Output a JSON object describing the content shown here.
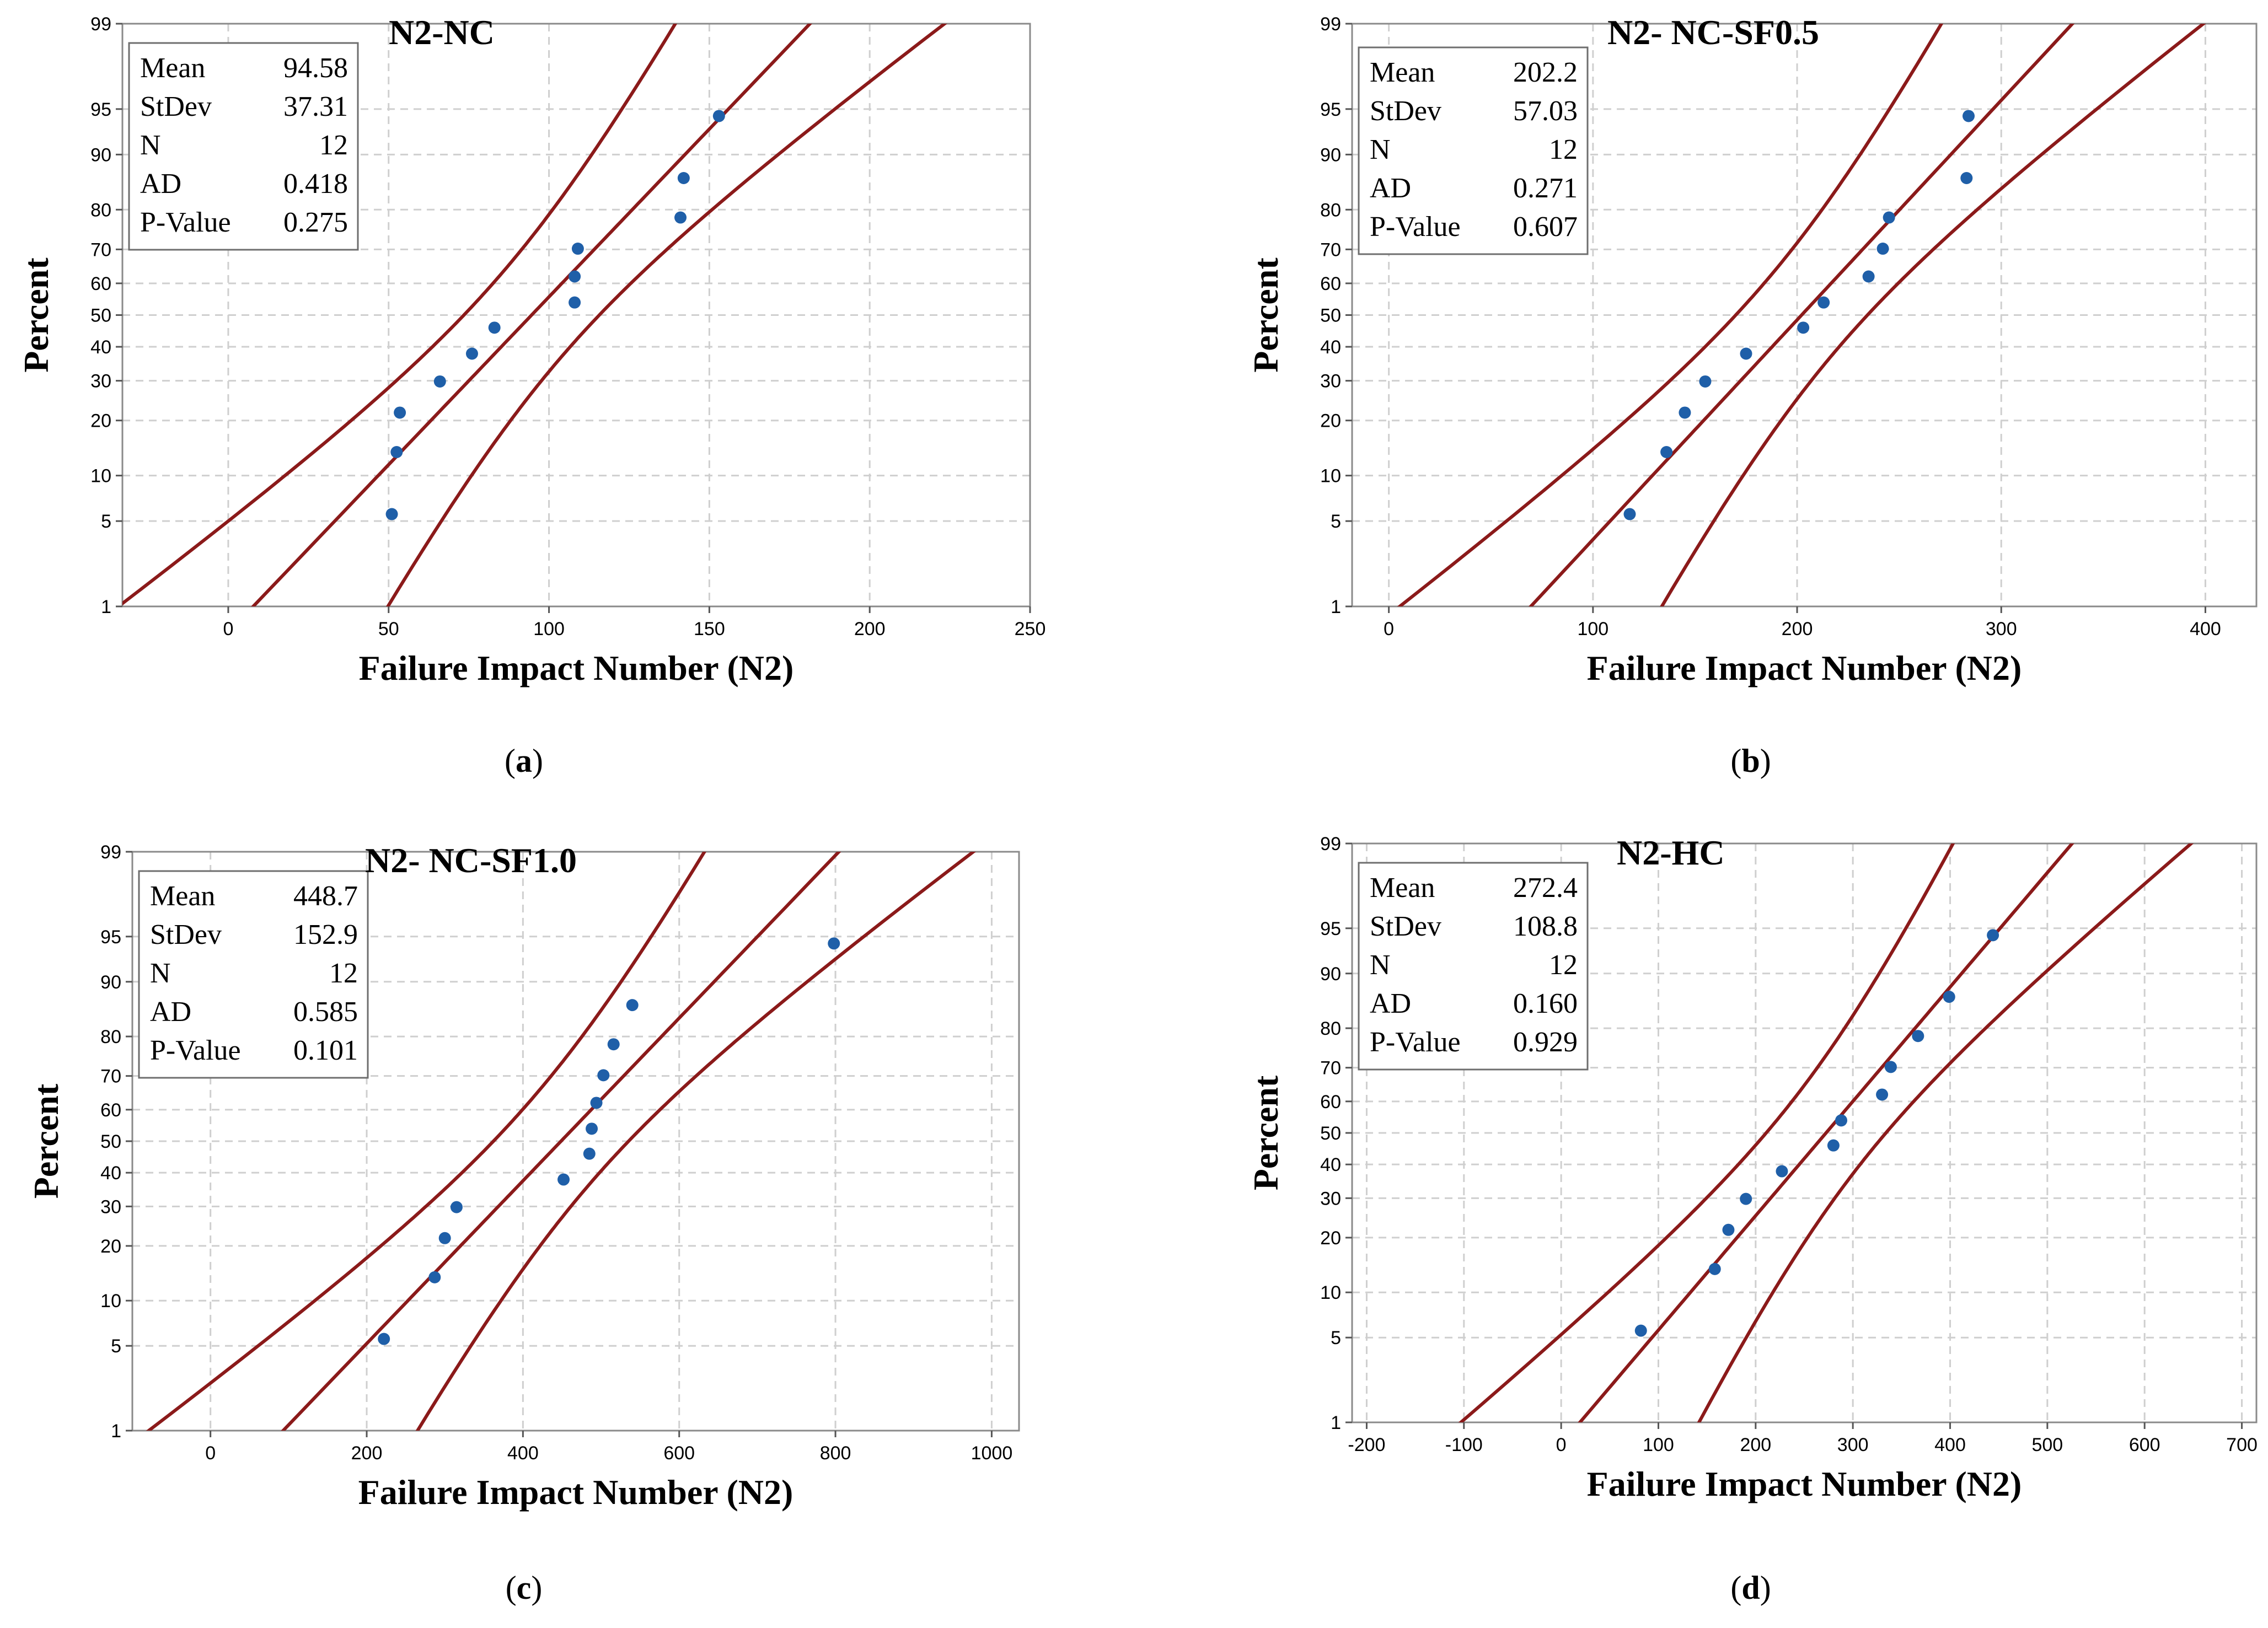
{
  "colors": {
    "line": "#8b1a1a",
    "point": "#1f5fa8",
    "grid": "#cfcfcf",
    "frame": "#8a8a8a"
  },
  "stat_labels": [
    "Mean",
    "StDev",
    "N",
    "AD",
    "P-Value"
  ],
  "chart_data": [
    {
      "type": "scatter",
      "panel": "a",
      "caption_letter": "a",
      "title": "N2-NC",
      "xlabel": "Failure Impact Number (N2)",
      "ylabel": "Percent",
      "xlim": [
        -33,
        250
      ],
      "xticks": [
        0,
        50,
        100,
        150,
        200,
        250
      ],
      "yticks": [
        1,
        5,
        10,
        20,
        30,
        40,
        50,
        60,
        70,
        80,
        90,
        95,
        99
      ],
      "stats": {
        "mean": "94.58",
        "stdev": "37.31",
        "n": "12",
        "ad": "0.418",
        "p_value": "0.275"
      },
      "fit": {
        "mean": 94.58,
        "stdev": 37.31
      },
      "band_scale": 1.0,
      "points": [
        {
          "x": 51,
          "y": 5.6
        },
        {
          "x": 52.5,
          "y": 13.7
        },
        {
          "x": 53.5,
          "y": 21.8
        },
        {
          "x": 66,
          "y": 29.8
        },
        {
          "x": 76,
          "y": 37.9
        },
        {
          "x": 83,
          "y": 46.0
        },
        {
          "x": 108,
          "y": 54.0
        },
        {
          "x": 108,
          "y": 62.1
        },
        {
          "x": 109,
          "y": 70.2
        },
        {
          "x": 141,
          "y": 78.2
        },
        {
          "x": 142,
          "y": 86.3
        },
        {
          "x": 153,
          "y": 94.4
        }
      ]
    },
    {
      "type": "scatter",
      "panel": "b",
      "caption_letter": "b",
      "title": "N2- NC-SF0.5",
      "xlabel": "Failure Impact Number (N2)",
      "ylabel": "Percent",
      "xlim": [
        -18,
        425
      ],
      "xticks": [
        0,
        100,
        200,
        300,
        400
      ],
      "yticks": [
        1,
        5,
        10,
        20,
        30,
        40,
        50,
        60,
        70,
        80,
        90,
        95,
        99
      ],
      "stats": {
        "mean": "202.2",
        "stdev": "57.03",
        "n": "12",
        "ad": "0.271",
        "p_value": "0.607"
      },
      "fit": {
        "mean": 202.2,
        "stdev": 57.03
      },
      "band_scale": 1.0,
      "points": [
        {
          "x": 118,
          "y": 5.6
        },
        {
          "x": 136,
          "y": 13.7
        },
        {
          "x": 145,
          "y": 21.8
        },
        {
          "x": 155,
          "y": 29.8
        },
        {
          "x": 175,
          "y": 37.9
        },
        {
          "x": 203,
          "y": 46.0
        },
        {
          "x": 213,
          "y": 54.0
        },
        {
          "x": 235,
          "y": 62.1
        },
        {
          "x": 242,
          "y": 70.2
        },
        {
          "x": 245,
          "y": 78.2
        },
        {
          "x": 283,
          "y": 86.3
        },
        {
          "x": 284,
          "y": 94.4
        }
      ]
    },
    {
      "type": "scatter",
      "panel": "c",
      "caption_letter": "c",
      "title": "N2- NC-SF1.0",
      "xlabel": "Failure Impact Number (N2)",
      "ylabel": "Percent",
      "xlim": [
        -100,
        1035
      ],
      "xticks": [
        0,
        200,
        400,
        600,
        800,
        1000
      ],
      "yticks": [
        1,
        5,
        10,
        20,
        30,
        40,
        50,
        60,
        70,
        80,
        90,
        95,
        99
      ],
      "stats": {
        "mean": "448.7",
        "stdev": "152.9",
        "n": "12",
        "ad": "0.585",
        "p_value": "0.101"
      },
      "fit": {
        "mean": 448.7,
        "stdev": 152.9
      },
      "band_scale": 1.0,
      "points": [
        {
          "x": 222,
          "y": 5.6
        },
        {
          "x": 287,
          "y": 13.7
        },
        {
          "x": 300,
          "y": 21.8
        },
        {
          "x": 315,
          "y": 29.8
        },
        {
          "x": 452,
          "y": 37.9
        },
        {
          "x": 485,
          "y": 46.0
        },
        {
          "x": 488,
          "y": 54.0
        },
        {
          "x": 494,
          "y": 62.1
        },
        {
          "x": 503,
          "y": 70.2
        },
        {
          "x": 516,
          "y": 78.2
        },
        {
          "x": 540,
          "y": 86.3
        },
        {
          "x": 798,
          "y": 94.4
        }
      ]
    },
    {
      "type": "scatter",
      "panel": "d",
      "caption_letter": "d",
      "title": "N2-HC",
      "xlabel": "Failure Impact Number (N2)",
      "ylabel": "Percent",
      "xlim": [
        -215,
        715
      ],
      "xticks": [
        -200,
        -100,
        0,
        100,
        200,
        300,
        400,
        500,
        600,
        700
      ],
      "yticks": [
        1,
        5,
        10,
        20,
        30,
        40,
        50,
        60,
        70,
        80,
        90,
        95,
        99
      ],
      "stats": {
        "mean": "272.4",
        "stdev": "108.8",
        "n": "12",
        "ad": "0.160",
        "p_value": "0.929"
      },
      "fit": {
        "mean": 272.4,
        "stdev": 108.8
      },
      "band_scale": 1.0,
      "points": [
        {
          "x": 82,
          "y": 5.6
        },
        {
          "x": 158,
          "y": 13.7
        },
        {
          "x": 172,
          "y": 21.8
        },
        {
          "x": 190,
          "y": 29.8
        },
        {
          "x": 227,
          "y": 37.9
        },
        {
          "x": 280,
          "y": 46.0
        },
        {
          "x": 288,
          "y": 54.0
        },
        {
          "x": 330,
          "y": 62.1
        },
        {
          "x": 339,
          "y": 70.2
        },
        {
          "x": 367,
          "y": 78.2
        },
        {
          "x": 399,
          "y": 86.3
        },
        {
          "x": 444,
          "y": 94.4
        }
      ]
    }
  ]
}
